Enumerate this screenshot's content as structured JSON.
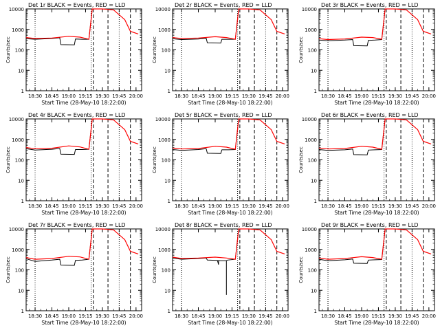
{
  "common": {
    "xlabel": "Start Time (28-May-10 18:22:00)",
    "ylabel": "Counts/sec",
    "x_ticks": [
      "18:30",
      "18:45",
      "19:00",
      "19:15",
      "19:30",
      "19:45",
      "20:00"
    ],
    "y_ticks": [
      "1",
      "10",
      "100",
      "1000",
      "10000"
    ],
    "colors": {
      "events": "#000000",
      "lld": "#ff0000",
      "axes": "#000000"
    }
  },
  "chart_data": [
    {
      "type": "line",
      "title": "Det 1r BLACK = Events, RED = LLD",
      "yscale": "log",
      "ylim": [
        1,
        10000
      ],
      "xlim": [
        "18:22",
        "20:05"
      ],
      "series": [
        {
          "name": "Events",
          "color": "#000000"
        },
        {
          "name": "LLD",
          "color": "#ff0000"
        }
      ],
      "events": {
        "x": [
          "18:22",
          "18:30",
          "18:45",
          "18:52",
          "18:53",
          "19:05",
          "19:06",
          "19:12",
          "19:18",
          "19:21"
        ],
        "y": [
          350,
          330,
          360,
          390,
          180,
          175,
          340,
          330,
          330,
          10000
        ]
      },
      "lld": {
        "x": [
          "18:22",
          "18:30",
          "18:45",
          "19:00",
          "19:10",
          "19:18",
          "19:21",
          "19:30",
          "19:40",
          "19:50",
          "19:55",
          "20:02"
        ],
        "y": [
          400,
          360,
          380,
          460,
          420,
          330,
          10000,
          10000,
          9000,
          3000,
          800,
          600
        ]
      }
    },
    {
      "type": "line",
      "title": "Det 2r BLACK = Events, RED = LLD",
      "yscale": "log",
      "ylim": [
        1,
        10000
      ],
      "xlim": [
        "18:22",
        "20:05"
      ],
      "series": [
        {
          "name": "Events",
          "color": "#000000"
        },
        {
          "name": "LLD",
          "color": "#ff0000"
        }
      ],
      "events": {
        "x": [
          "18:22",
          "18:30",
          "18:45",
          "18:52",
          "18:53",
          "19:05",
          "19:06",
          "19:12",
          "19:18",
          "19:21"
        ],
        "y": [
          350,
          320,
          340,
          370,
          220,
          215,
          330,
          330,
          330,
          10000
        ]
      },
      "lld": {
        "x": [
          "18:22",
          "18:30",
          "18:45",
          "19:00",
          "19:10",
          "19:18",
          "19:21",
          "19:30",
          "19:40",
          "19:50",
          "19:55",
          "20:02"
        ],
        "y": [
          400,
          360,
          380,
          440,
          400,
          330,
          10000,
          10000,
          9000,
          3000,
          800,
          600
        ]
      }
    },
    {
      "type": "line",
      "title": "Det 3r BLACK = Events, RED = LLD",
      "yscale": "log",
      "ylim": [
        1,
        10000
      ],
      "xlim": [
        "18:22",
        "20:05"
      ],
      "series": [
        {
          "name": "Events",
          "color": "#000000"
        },
        {
          "name": "LLD",
          "color": "#ff0000"
        }
      ],
      "events": {
        "x": [
          "18:22",
          "18:30",
          "18:45",
          "18:52",
          "18:53",
          "19:05",
          "19:06",
          "19:12",
          "19:18",
          "19:21"
        ],
        "y": [
          300,
          280,
          300,
          320,
          160,
          155,
          290,
          300,
          320,
          10000
        ]
      },
      "lld": {
        "x": [
          "18:22",
          "18:30",
          "18:45",
          "19:00",
          "19:10",
          "19:18",
          "19:21",
          "19:30",
          "19:40",
          "19:50",
          "19:55",
          "20:02"
        ],
        "y": [
          350,
          320,
          340,
          420,
          400,
          330,
          10000,
          10000,
          9000,
          3000,
          800,
          600
        ]
      }
    },
    {
      "type": "line",
      "title": "Det 4r BLACK = Events, RED = LLD",
      "yscale": "log",
      "ylim": [
        1,
        10000
      ],
      "xlim": [
        "18:22",
        "20:05"
      ],
      "series": [
        {
          "name": "Events",
          "color": "#000000"
        },
        {
          "name": "LLD",
          "color": "#ff0000"
        }
      ],
      "events": {
        "x": [
          "18:22",
          "18:30",
          "18:45",
          "18:52",
          "18:53",
          "19:05",
          "19:06",
          "19:12",
          "19:18",
          "19:21"
        ],
        "y": [
          350,
          300,
          330,
          360,
          190,
          185,
          320,
          320,
          330,
          10000
        ]
      },
      "lld": {
        "x": [
          "18:22",
          "18:30",
          "18:45",
          "19:00",
          "19:10",
          "19:18",
          "19:21",
          "19:30",
          "19:40",
          "19:50",
          "19:55",
          "20:02"
        ],
        "y": [
          400,
          350,
          370,
          480,
          430,
          330,
          10000,
          10000,
          9000,
          3000,
          800,
          600
        ]
      }
    },
    {
      "type": "line",
      "title": "Det 5r BLACK = Events, RED = LLD",
      "yscale": "log",
      "ylim": [
        1,
        10000
      ],
      "xlim": [
        "18:22",
        "20:05"
      ],
      "series": [
        {
          "name": "Events",
          "color": "#000000"
        },
        {
          "name": "LLD",
          "color": "#ff0000"
        }
      ],
      "events": {
        "x": [
          "18:22",
          "18:30",
          "18:45",
          "18:52",
          "18:53",
          "19:05",
          "19:06",
          "19:12",
          "19:18",
          "19:21"
        ],
        "y": [
          320,
          290,
          320,
          350,
          210,
          205,
          310,
          310,
          320,
          10000
        ]
      },
      "lld": {
        "x": [
          "18:22",
          "18:30",
          "18:45",
          "19:00",
          "19:10",
          "19:18",
          "19:21",
          "19:30",
          "19:40",
          "19:50",
          "19:55",
          "20:02"
        ],
        "y": [
          380,
          340,
          360,
          460,
          420,
          330,
          10000,
          10000,
          9000,
          3000,
          800,
          600
        ]
      }
    },
    {
      "type": "line",
      "title": "Det 6r BLACK = Events, RED = LLD",
      "yscale": "log",
      "ylim": [
        1,
        10000
      ],
      "xlim": [
        "18:22",
        "20:05"
      ],
      "series": [
        {
          "name": "Events",
          "color": "#000000"
        },
        {
          "name": "LLD",
          "color": "#ff0000"
        }
      ],
      "events": {
        "x": [
          "18:22",
          "18:30",
          "18:45",
          "18:52",
          "18:53",
          "19:05",
          "19:06",
          "19:12",
          "19:18",
          "19:21"
        ],
        "y": [
          320,
          290,
          310,
          340,
          180,
          175,
          300,
          310,
          320,
          10000
        ]
      },
      "lld": {
        "x": [
          "18:22",
          "18:30",
          "18:45",
          "19:00",
          "19:10",
          "19:18",
          "19:21",
          "19:30",
          "19:40",
          "19:50",
          "19:55",
          "20:02"
        ],
        "y": [
          380,
          340,
          360,
          460,
          420,
          330,
          10000,
          10000,
          9000,
          3000,
          800,
          600
        ]
      }
    },
    {
      "type": "line",
      "title": "Det 7r BLACK = Events, RED = LLD",
      "yscale": "log",
      "ylim": [
        1,
        10000
      ],
      "xlim": [
        "18:22",
        "20:05"
      ],
      "series": [
        {
          "name": "Events",
          "color": "#000000"
        },
        {
          "name": "LLD",
          "color": "#ff0000"
        }
      ],
      "events": {
        "x": [
          "18:22",
          "18:30",
          "18:45",
          "18:52",
          "18:53",
          "19:05",
          "19:06",
          "19:12",
          "19:18",
          "19:21"
        ],
        "y": [
          350,
          260,
          300,
          330,
          170,
          165,
          290,
          300,
          330,
          10000
        ]
      },
      "lld": {
        "x": [
          "18:22",
          "18:30",
          "18:45",
          "19:00",
          "19:10",
          "19:18",
          "19:21",
          "19:30",
          "19:40",
          "19:50",
          "19:55",
          "20:02"
        ],
        "y": [
          400,
          330,
          360,
          460,
          430,
          330,
          10000,
          10000,
          9000,
          3000,
          800,
          600
        ]
      }
    },
    {
      "type": "line",
      "title": "Det 8r BLACK = Events, RED = LLD",
      "yscale": "log",
      "ylim": [
        1,
        10000
      ],
      "xlim": [
        "18:22",
        "20:05"
      ],
      "series": [
        {
          "name": "Events",
          "color": "#000000"
        },
        {
          "name": "LLD",
          "color": "#ff0000"
        }
      ],
      "events": {
        "x": [
          "18:22",
          "18:30",
          "18:45",
          "18:52",
          "18:53",
          "19:02",
          "19:03",
          "19:03",
          "19:04",
          "19:10",
          "19:10",
          "19:10",
          "19:11",
          "19:18",
          "19:21"
        ],
        "y": [
          380,
          330,
          360,
          380,
          300,
          290,
          180,
          290,
          280,
          280,
          6,
          280,
          300,
          330,
          10000
        ]
      },
      "lld": {
        "x": [
          "18:22",
          "18:30",
          "18:45",
          "19:00",
          "19:10",
          "19:18",
          "19:21",
          "19:30",
          "19:40",
          "19:50",
          "19:55",
          "20:02"
        ],
        "y": [
          420,
          360,
          380,
          420,
          380,
          330,
          10000,
          10000,
          9000,
          3000,
          800,
          600
        ]
      }
    },
    {
      "type": "line",
      "title": "Det 9r BLACK = Events, RED = LLD",
      "yscale": "log",
      "ylim": [
        1,
        10000
      ],
      "xlim": [
        "18:22",
        "20:05"
      ],
      "series": [
        {
          "name": "Events",
          "color": "#000000"
        },
        {
          "name": "LLD",
          "color": "#ff0000"
        }
      ],
      "events": {
        "x": [
          "18:22",
          "18:30",
          "18:45",
          "18:52",
          "18:53",
          "19:05",
          "19:06",
          "19:12",
          "19:18",
          "19:21"
        ],
        "y": [
          330,
          280,
          310,
          340,
          210,
          205,
          300,
          310,
          320,
          10000
        ]
      },
      "lld": {
        "x": [
          "18:22",
          "18:30",
          "18:45",
          "19:00",
          "19:10",
          "19:18",
          "19:21",
          "19:30",
          "19:40",
          "19:50",
          "19:55",
          "20:02"
        ],
        "y": [
          380,
          330,
          360,
          440,
          400,
          330,
          10000,
          10000,
          9000,
          3000,
          800,
          600
        ]
      }
    }
  ]
}
